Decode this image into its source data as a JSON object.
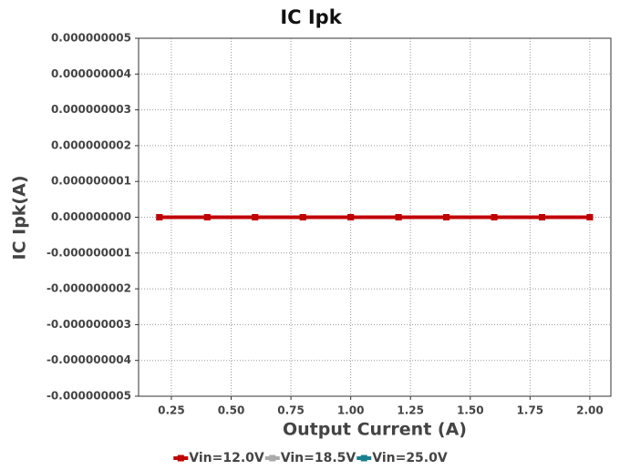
{
  "chart_data": {
    "type": "line",
    "title": "IC Ipk",
    "xlabel": "Output Current (A)",
    "ylabel": "IC Ipk(A)",
    "x": [
      0.2,
      0.4,
      0.6,
      0.8,
      1.0,
      1.2,
      1.4,
      1.6,
      1.8,
      2.0
    ],
    "series": [
      {
        "name": "Vin=12.0V",
        "color": "#c00000",
        "values": [
          0,
          0,
          0,
          0,
          0,
          0,
          0,
          0,
          0,
          0
        ]
      },
      {
        "name": "Vin=18.5V",
        "color": "#aaaaaa",
        "values": [
          0,
          0,
          0,
          0,
          0,
          0,
          0,
          0,
          0,
          0
        ]
      },
      {
        "name": "Vin=25.0V",
        "color": "#1a7f8f",
        "values": [
          0,
          0,
          0,
          0,
          0,
          0,
          0,
          0,
          0,
          0
        ]
      }
    ],
    "xlim": [
      0.113,
      2.088
    ],
    "xticks": [
      0.25,
      {
        "value": 0.5,
        "label": "0.50"
      },
      0.75,
      {
        "value": 1.0,
        "label": "1.00"
      },
      1.25,
      {
        "value": 1.5,
        "label": "1.50"
      },
      1.75,
      {
        "value": 2.0,
        "label": "2.00"
      }
    ],
    "ylim": [
      -5e-09,
      5e-09
    ],
    "yticks": [
      {
        "value": -5e-09,
        "label": "-0.000000005"
      },
      {
        "value": -4e-09,
        "label": "-0.000000004"
      },
      {
        "value": -3e-09,
        "label": "-0.000000003"
      },
      {
        "value": -2e-09,
        "label": "-0.000000002"
      },
      {
        "value": -1e-09,
        "label": "-0.000000001"
      },
      {
        "value": 0,
        "label": "0.000000000"
      },
      {
        "value": 1e-09,
        "label": "0.000000001"
      },
      {
        "value": 2e-09,
        "label": "0.000000002"
      },
      {
        "value": 3e-09,
        "label": "0.000000003"
      },
      {
        "value": 4e-09,
        "label": "0.000000004"
      },
      {
        "value": 5e-09,
        "label": "0.000000005"
      }
    ],
    "grid": true,
    "legend": "bottom"
  }
}
